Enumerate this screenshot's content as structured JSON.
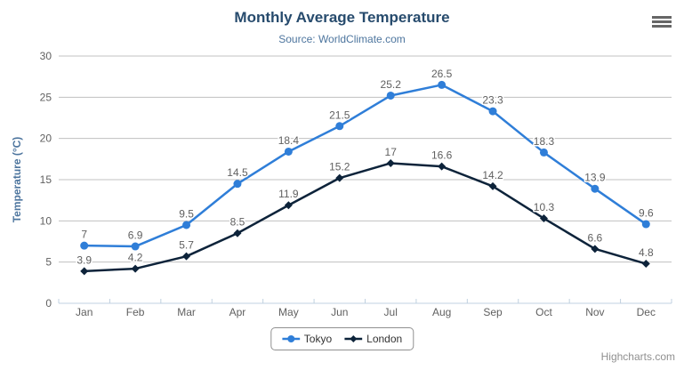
{
  "chart_data": {
    "type": "line",
    "title": "Monthly Average Temperature",
    "subtitle": "Source: WorldClimate.com",
    "xlabel": "",
    "ylabel": "Temperature (°C)",
    "categories": [
      "Jan",
      "Feb",
      "Mar",
      "Apr",
      "May",
      "Jun",
      "Jul",
      "Aug",
      "Sep",
      "Oct",
      "Nov",
      "Dec"
    ],
    "ylim": [
      0,
      30
    ],
    "yticks": [
      0,
      5,
      10,
      15,
      20,
      25,
      30
    ],
    "grid": true,
    "legend_position": "bottom",
    "series": [
      {
        "name": "Tokyo",
        "color": "#2f7ed8",
        "marker": "circle",
        "values": [
          7,
          6.9,
          9.5,
          14.5,
          18.4,
          21.5,
          25.2,
          26.5,
          23.3,
          18.3,
          13.9,
          9.6
        ]
      },
      {
        "name": "London",
        "color": "#0d233a",
        "marker": "diamond",
        "values": [
          3.9,
          4.2,
          5.7,
          8.5,
          11.9,
          15.2,
          17,
          16.6,
          14.2,
          10.3,
          6.6,
          4.8
        ]
      }
    ],
    "credits": "Highcharts.com"
  },
  "theme": {
    "background": "#ffffff",
    "title_color": "#274b6d",
    "subtitle_color": "#4d759e",
    "axis_title_color": "#4d759e",
    "label_color": "#606060",
    "data_label_color": "#606060",
    "grid_line": "#c0c0c0",
    "axis_line": "#c0d0e0",
    "legend_text": "#333333",
    "legend_border": "#909090",
    "credits_color": "#909090",
    "menu_icon": "#666666"
  },
  "icons": {
    "context_menu": "hamburger-icon"
  }
}
